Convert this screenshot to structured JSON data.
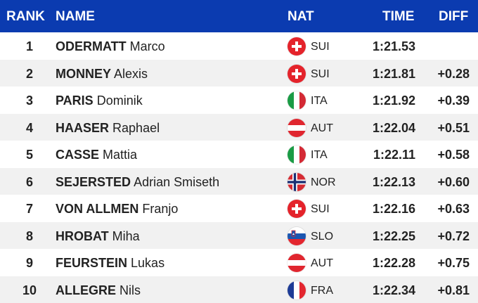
{
  "header": {
    "rank": "RANK",
    "name": "NAME",
    "nat": "NAT",
    "time": "TIME",
    "diff": "DIFF"
  },
  "colors": {
    "header_bg": "#0b3bb0",
    "row_alt_bg": "#f1f1f1"
  },
  "rows": [
    {
      "rank": "1",
      "last": "ODERMATT",
      "first": "Marco",
      "flag": "swiss-flag-icon",
      "nat": "SUI",
      "time": "1:21.53",
      "diff": ""
    },
    {
      "rank": "2",
      "last": "MONNEY",
      "first": "Alexis",
      "flag": "swiss-flag-icon",
      "nat": "SUI",
      "time": "1:21.81",
      "diff": "+0.28"
    },
    {
      "rank": "3",
      "last": "PARIS",
      "first": "Dominik",
      "flag": "italian-flag-icon",
      "nat": "ITA",
      "time": "1:21.92",
      "diff": "+0.39"
    },
    {
      "rank": "4",
      "last": "HAASER",
      "first": "Raphael",
      "flag": "austrian-flag-icon",
      "nat": "AUT",
      "time": "1:22.04",
      "diff": "+0.51"
    },
    {
      "rank": "5",
      "last": "CASSE",
      "first": "Mattia",
      "flag": "italian-flag-icon",
      "nat": "ITA",
      "time": "1:22.11",
      "diff": "+0.58"
    },
    {
      "rank": "6",
      "last": "SEJERSTED",
      "first": "Adrian Smiseth",
      "flag": "norwegian-flag-icon",
      "nat": "NOR",
      "time": "1:22.13",
      "diff": "+0.60"
    },
    {
      "rank": "7",
      "last": "VON ALLMEN",
      "first": "Franjo",
      "flag": "swiss-flag-icon",
      "nat": "SUI",
      "time": "1:22.16",
      "diff": "+0.63"
    },
    {
      "rank": "8",
      "last": "HROBAT",
      "first": "Miha",
      "flag": "slovenian-flag-icon",
      "nat": "SLO",
      "time": "1:22.25",
      "diff": "+0.72"
    },
    {
      "rank": "9",
      "last": "FEURSTEIN",
      "first": "Lukas",
      "flag": "austrian-flag-icon",
      "nat": "AUT",
      "time": "1:22.28",
      "diff": "+0.75"
    },
    {
      "rank": "10",
      "last": "ALLEGRE",
      "first": "Nils",
      "flag": "french-flag-icon",
      "nat": "FRA",
      "time": "1:22.34",
      "diff": "+0.81"
    }
  ]
}
